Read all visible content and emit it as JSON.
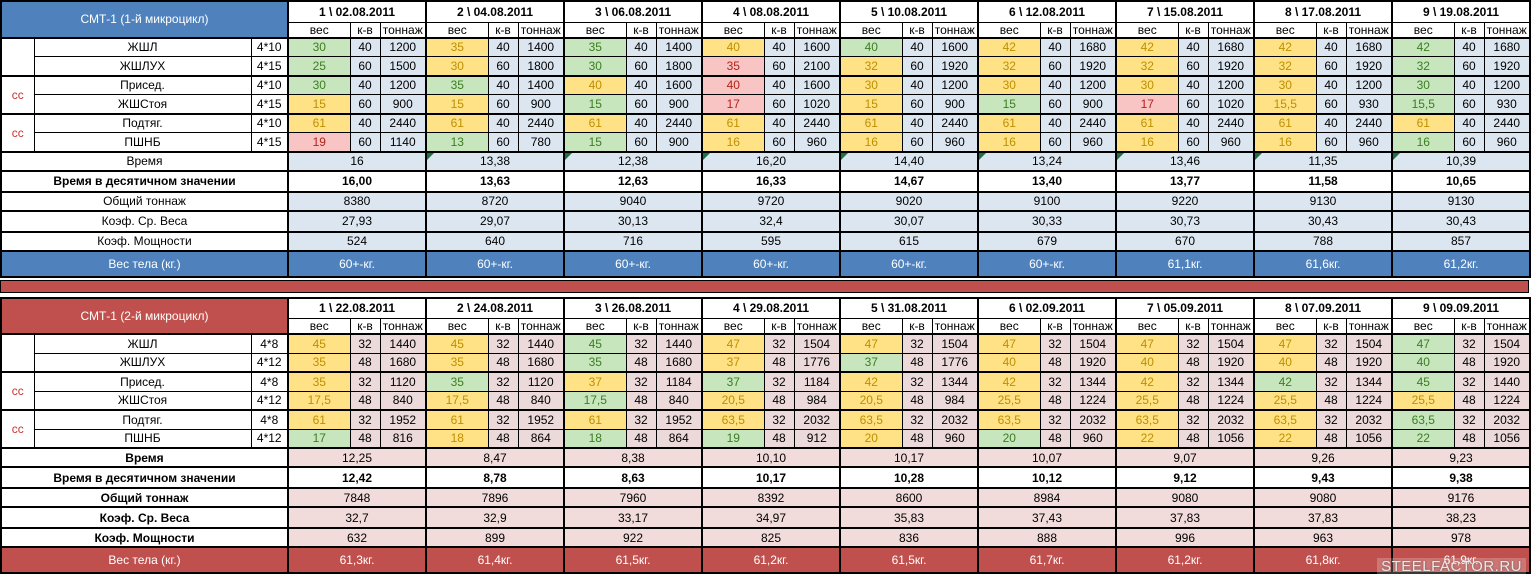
{
  "watermark": {
    "text": "STEELFACTOR.RU"
  },
  "divider_color": "#c0504d",
  "palette": {
    "g": {
      "bg": "#c7e6bd",
      "text": "#3c7d22"
    },
    "y": {
      "bg": "#ffe285",
      "text": "#bf8f00"
    },
    "r": {
      "bg": "#f8c4c4",
      "text": "#b42318"
    }
  },
  "sections": [
    {
      "title": "СМТ-1 (1-й микроцикл)",
      "colors": {
        "header_bg": "#4f81bd",
        "header_text": "#ffffff",
        "cell_bg": "#dce6f1",
        "summary_bg": "#dce6f1",
        "cc_text": "#cc3333",
        "triangle": "#1e7145"
      },
      "columns": [
        "1 \\ 02.08.2011",
        "2 \\ 04.08.2011",
        "3 \\ 06.08.2011",
        "4 \\ 08.08.2011",
        "5 \\ 10.08.2011",
        "6 \\ 12.08.2011",
        "7 \\ 15.08.2011",
        "8 \\ 17.08.2011",
        "9 \\ 19.08.2011"
      ],
      "subheaders": [
        "вес",
        "к-в",
        "тоннаж"
      ],
      "groups": [
        {
          "label": ""
        },
        {
          "label": "сс"
        },
        {
          "label": "сс"
        }
      ],
      "exercises": [
        {
          "name": "ЖШЛ",
          "sets": "4*10",
          "reps": "40",
          "weights": [
            "30",
            "35",
            "35",
            "40",
            "40",
            "42",
            "42",
            "42",
            "42"
          ],
          "weight_colors": [
            "g",
            "y",
            "g",
            "y",
            "g",
            "y",
            "y",
            "y",
            "g"
          ],
          "tonnage": [
            "1200",
            "1400",
            "1400",
            "1600",
            "1600",
            "1680",
            "1680",
            "1680",
            "1680"
          ]
        },
        {
          "name": "ЖШЛУХ",
          "sets": "4*15",
          "reps": "60",
          "weights": [
            "25",
            "30",
            "30",
            "35",
            "32",
            "32",
            "32",
            "32",
            "32"
          ],
          "weight_colors": [
            "g",
            "y",
            "g",
            "r",
            "y",
            "y",
            "y",
            "y",
            "g"
          ],
          "tonnage": [
            "1500",
            "1800",
            "1800",
            "2100",
            "1920",
            "1920",
            "1920",
            "1920",
            "1920"
          ]
        },
        {
          "name": "Присед.",
          "sets": "4*10",
          "reps": "40",
          "weights": [
            "30",
            "35",
            "40",
            "40",
            "30",
            "30",
            "30",
            "30",
            "30"
          ],
          "weight_colors": [
            "g",
            "g",
            "y",
            "r",
            "y",
            "y",
            "y",
            "y",
            "g"
          ],
          "tonnage": [
            "1200",
            "1400",
            "1600",
            "1600",
            "1200",
            "1200",
            "1200",
            "1200",
            "1200"
          ]
        },
        {
          "name": "ЖШСтоя",
          "sets": "4*15",
          "reps": "60",
          "weights": [
            "15",
            "15",
            "15",
            "17",
            "15",
            "15",
            "17",
            "15,5",
            "15,5"
          ],
          "weight_colors": [
            "y",
            "y",
            "g",
            "r",
            "y",
            "g",
            "r",
            "y",
            "g"
          ],
          "tonnage": [
            "900",
            "900",
            "900",
            "1020",
            "900",
            "900",
            "1020",
            "930",
            "930"
          ]
        },
        {
          "name": "Подтяг.",
          "sets": "4*10",
          "reps": "40",
          "weights": [
            "61",
            "61",
            "61",
            "61",
            "61",
            "61",
            "61",
            "61",
            "61"
          ],
          "weight_colors": [
            "y",
            "y",
            "y",
            "y",
            "y",
            "y",
            "y",
            "y",
            "y"
          ],
          "tonnage": [
            "2440",
            "2440",
            "2440",
            "2440",
            "2440",
            "2440",
            "2440",
            "2440",
            "2440"
          ]
        },
        {
          "name": "ПШНБ",
          "sets": "4*15",
          "reps": "60",
          "weights": [
            "19",
            "13",
            "15",
            "16",
            "16",
            "16",
            "16",
            "16",
            "16"
          ],
          "weight_colors": [
            "r",
            "g",
            "g",
            "y",
            "y",
            "y",
            "y",
            "y",
            "g"
          ],
          "tonnage": [
            "1140",
            "780",
            "900",
            "960",
            "960",
            "960",
            "960",
            "960",
            "960"
          ]
        }
      ],
      "bold_summary_labels": false,
      "summary": [
        {
          "label": "Время",
          "values": [
            "16",
            "13,38",
            "12,38",
            "16,20",
            "14,40",
            "13,24",
            "13,46",
            "11,35",
            "10,39"
          ],
          "tinted": true,
          "bold": false,
          "triangles": [
            false,
            true,
            true,
            true,
            true,
            true,
            true,
            true,
            true
          ]
        },
        {
          "label": "Время в десятичном значении",
          "values": [
            "16,00",
            "13,63",
            "12,63",
            "16,33",
            "14,67",
            "13,40",
            "13,77",
            "11,58",
            "10,65"
          ],
          "tinted": false,
          "bold": true
        },
        {
          "label": "Общий тоннаж",
          "values": [
            "8380",
            "8720",
            "9040",
            "9720",
            "9020",
            "9100",
            "9220",
            "9130",
            "9130"
          ],
          "tinted": true,
          "bold": false
        },
        {
          "label": "Коэф. Ср. Веса",
          "values": [
            "27,93",
            "29,07",
            "30,13",
            "32,4",
            "30,07",
            "30,33",
            "30,73",
            "30,43",
            "30,43"
          ],
          "tinted": true,
          "bold": false
        },
        {
          "label": "Коэф. Мощности",
          "values": [
            "524",
            "640",
            "716",
            "595",
            "615",
            "679",
            "670",
            "788",
            "857"
          ],
          "tinted": true,
          "bold": false
        }
      ],
      "bodyweight": {
        "label": "Вес тела (кг.)",
        "values": [
          "60+-кг.",
          "60+-кг.",
          "60+-кг.",
          "60+-кг.",
          "60+-кг.",
          "60+-кг.",
          "61,1кг.",
          "61,6кг.",
          "61,2кг."
        ]
      }
    },
    {
      "title": "СМТ-1 (2-й микроцикл)",
      "colors": {
        "header_bg": "#c0504d",
        "header_text": "#ffffff",
        "cell_bg": "#ecd9d9",
        "summary_bg": "#f2dcdb",
        "cc_text": "#cc3333",
        "triangle": "#1e7145"
      },
      "columns": [
        "1 \\ 22.08.2011",
        "2 \\ 24.08.2011",
        "3 \\ 26.08.2011",
        "4 \\ 29.08.2011",
        "5 \\ 31.08.2011",
        "6 \\ 02.09.2011",
        "7 \\ 05.09.2011",
        "8 \\ 07.09.2011",
        "9 \\ 09.09.2011"
      ],
      "subheaders": [
        "вес",
        "к-в",
        "тоннаж"
      ],
      "groups": [
        {
          "label": ""
        },
        {
          "label": "сс"
        },
        {
          "label": "сс"
        }
      ],
      "exercises": [
        {
          "name": "ЖШЛ",
          "sets": "4*8",
          "reps": "32",
          "weights": [
            "45",
            "45",
            "45",
            "47",
            "47",
            "47",
            "47",
            "47",
            "47"
          ],
          "weight_colors": [
            "y",
            "y",
            "g",
            "y",
            "y",
            "y",
            "y",
            "y",
            "g"
          ],
          "tonnage": [
            "1440",
            "1440",
            "1440",
            "1504",
            "1504",
            "1504",
            "1504",
            "1504",
            "1504"
          ]
        },
        {
          "name": "ЖШЛУХ",
          "sets": "4*12",
          "reps": "48",
          "weights": [
            "35",
            "35",
            "35",
            "37",
            "37",
            "40",
            "40",
            "40",
            "40"
          ],
          "weight_colors": [
            "y",
            "y",
            "g",
            "y",
            "g",
            "y",
            "y",
            "y",
            "g"
          ],
          "tonnage": [
            "1680",
            "1680",
            "1680",
            "1776",
            "1776",
            "1920",
            "1920",
            "1920",
            "1920"
          ]
        },
        {
          "name": "Присед.",
          "sets": "4*8",
          "reps": "32",
          "weights": [
            "35",
            "35",
            "37",
            "37",
            "42",
            "42",
            "42",
            "42",
            "45"
          ],
          "weight_colors": [
            "y",
            "g",
            "y",
            "g",
            "y",
            "y",
            "y",
            "g",
            "g"
          ],
          "tonnage": [
            "1120",
            "1120",
            "1184",
            "1184",
            "1344",
            "1344",
            "1344",
            "1344",
            "1440"
          ]
        },
        {
          "name": "ЖШСтоя",
          "sets": "4*12",
          "reps": "48",
          "weights": [
            "17,5",
            "17,5",
            "17,5",
            "20,5",
            "20,5",
            "25,5",
            "25,5",
            "25,5",
            "25,5"
          ],
          "weight_colors": [
            "y",
            "y",
            "g",
            "y",
            "y",
            "y",
            "y",
            "y",
            "y"
          ],
          "tonnage": [
            "840",
            "840",
            "840",
            "984",
            "984",
            "1224",
            "1224",
            "1224",
            "1224"
          ]
        },
        {
          "name": "Подтяг.",
          "sets": "4*8",
          "reps": "32",
          "weights": [
            "61",
            "61",
            "61",
            "63,5",
            "63,5",
            "63,5",
            "63,5",
            "63,5",
            "63,5"
          ],
          "weight_colors": [
            "y",
            "y",
            "y",
            "y",
            "y",
            "y",
            "y",
            "y",
            "g"
          ],
          "tonnage": [
            "1952",
            "1952",
            "1952",
            "2032",
            "2032",
            "2032",
            "2032",
            "2032",
            "2032"
          ]
        },
        {
          "name": "ПШНБ",
          "sets": "4*12",
          "reps": "48",
          "weights": [
            "17",
            "18",
            "18",
            "19",
            "20",
            "20",
            "22",
            "22",
            "22"
          ],
          "weight_colors": [
            "g",
            "y",
            "g",
            "g",
            "y",
            "g",
            "y",
            "y",
            "g"
          ],
          "tonnage": [
            "816",
            "864",
            "864",
            "912",
            "960",
            "960",
            "1056",
            "1056",
            "1056"
          ]
        }
      ],
      "bold_summary_labels": true,
      "summary": [
        {
          "label": "Время",
          "values": [
            "12,25",
            "8,47",
            "8,38",
            "10,10",
            "10,17",
            "10,07",
            "9,07",
            "9,26",
            "9,23"
          ],
          "tinted": true,
          "bold": false
        },
        {
          "label": "Время в десятичном значении",
          "values": [
            "12,42",
            "8,78",
            "8,63",
            "10,17",
            "10,28",
            "10,12",
            "9,12",
            "9,43",
            "9,38"
          ],
          "tinted": false,
          "bold": true
        },
        {
          "label": "Общий тоннаж",
          "values": [
            "7848",
            "7896",
            "7960",
            "8392",
            "8600",
            "8984",
            "9080",
            "9080",
            "9176"
          ],
          "tinted": true,
          "bold": false
        },
        {
          "label": "Коэф. Ср. Веса",
          "values": [
            "32,7",
            "32,9",
            "33,17",
            "34,97",
            "35,83",
            "37,43",
            "37,83",
            "37,83",
            "38,23"
          ],
          "tinted": true,
          "bold": false
        },
        {
          "label": "Коэф. Мощности",
          "values": [
            "632",
            "899",
            "922",
            "825",
            "836",
            "888",
            "996",
            "963",
            "978"
          ],
          "tinted": true,
          "bold": false
        }
      ],
      "bodyweight": {
        "label": "Вес тела (кг.)",
        "values": [
          "61,3кг.",
          "61,4кг.",
          "61,5кг.",
          "61,2кг.",
          "61,5кг.",
          "61,7кг.",
          "61,2кг.",
          "61,8кг.",
          "61,9кг."
        ]
      }
    }
  ]
}
